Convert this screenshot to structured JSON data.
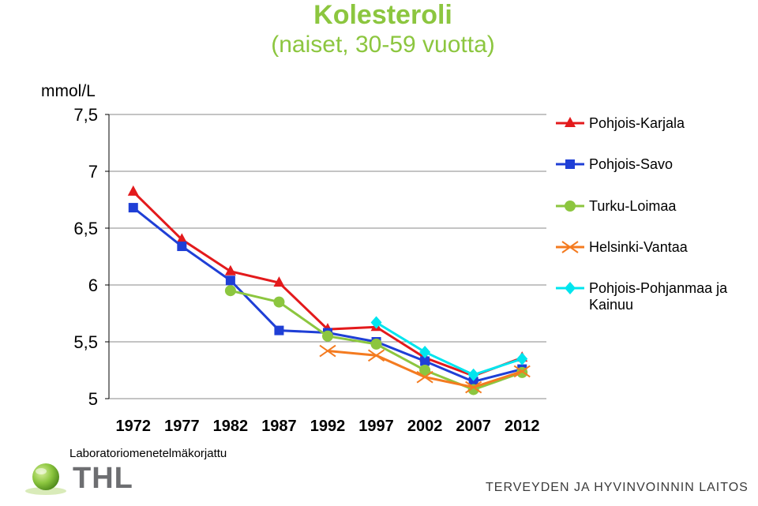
{
  "title": {
    "line1": "Kolesteroli",
    "line2": "(naiset, 30-59 vuotta)"
  },
  "chart_data": {
    "type": "line",
    "ylabel": "mmol/L",
    "ylim": [
      5,
      7.5
    ],
    "yticks": [
      "7,5",
      "7",
      "6,5",
      "6",
      "5,5",
      "5"
    ],
    "ytick_values": [
      7.5,
      7,
      6.5,
      6,
      5.5,
      5
    ],
    "categories": [
      "1972",
      "1977",
      "1982",
      "1987",
      "1992",
      "1997",
      "2002",
      "2007",
      "2012"
    ],
    "grid": true,
    "legend_position": "right",
    "series": [
      {
        "name": "Pohjois-Karjala",
        "color": "#e31a1c",
        "marker": "triangle",
        "values": [
          6.82,
          6.4,
          6.12,
          6.02,
          5.61,
          5.63,
          5.36,
          5.2,
          5.36
        ]
      },
      {
        "name": "Pohjois-Savo",
        "color": "#1f3fd6",
        "marker": "square",
        "values": [
          6.68,
          6.34,
          6.04,
          5.6,
          5.58,
          5.5,
          5.33,
          5.15,
          5.26
        ]
      },
      {
        "name": "Turku-Loimaa",
        "color": "#8cc63f",
        "marker": "circle",
        "values": [
          null,
          null,
          5.95,
          5.85,
          5.55,
          5.48,
          5.25,
          5.08,
          5.23
        ]
      },
      {
        "name": "Helsinki-Vantaa",
        "color": "#f47b20",
        "marker": "x",
        "values": [
          null,
          null,
          null,
          null,
          5.42,
          5.38,
          5.19,
          5.1,
          5.24
        ]
      },
      {
        "name": "Pohjois-Pohjanmaa ja Kainuu",
        "color": "#00e5ee",
        "marker": "diamond",
        "values": [
          null,
          null,
          null,
          null,
          null,
          5.67,
          5.41,
          5.21,
          5.35
        ]
      }
    ]
  },
  "legend": {
    "items": [
      {
        "label": "Pohjois-Karjala"
      },
      {
        "label": "Pohjois-Savo"
      },
      {
        "label": "Turku-Loimaa"
      },
      {
        "label": "Helsinki-Vantaa"
      },
      {
        "label": "Pohjois-Pohjanmaa ja Kainuu"
      }
    ]
  },
  "footnote": "Laboratoriomenetelmäkorjattu",
  "logo": {
    "text": "THL"
  },
  "organization": "TERVEYDEN JA HYVINVOINNIN LAITOS"
}
